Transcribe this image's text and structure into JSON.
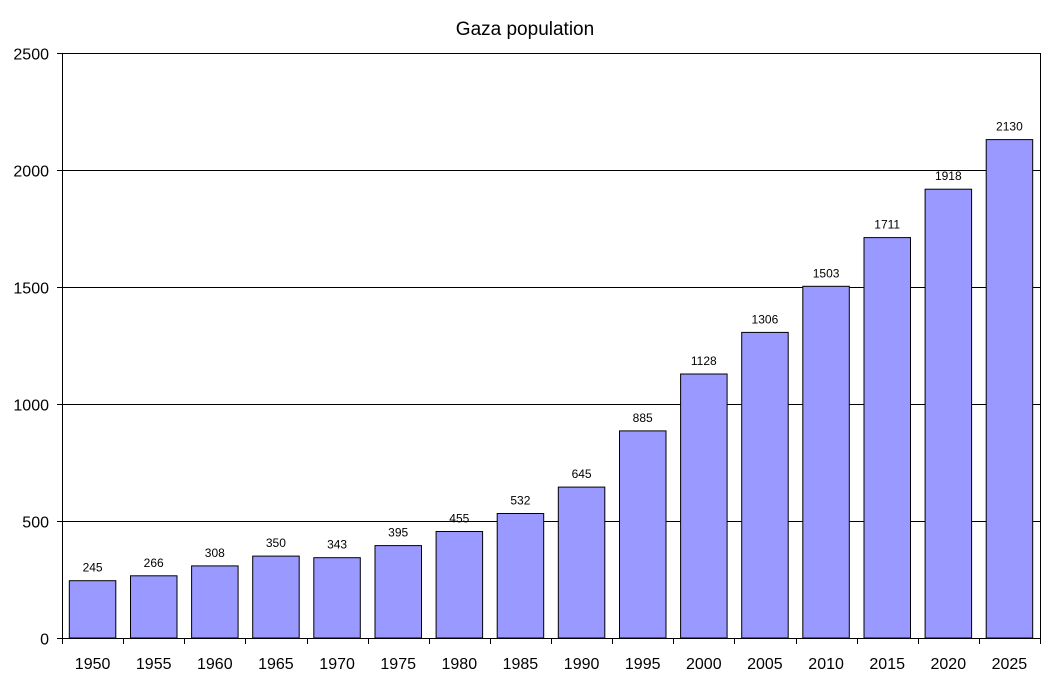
{
  "chart_data": {
    "type": "bar",
    "title": "Gaza population",
    "xlabel": "",
    "ylabel": "",
    "categories": [
      "1950",
      "1955",
      "1960",
      "1965",
      "1970",
      "1975",
      "1980",
      "1985",
      "1990",
      "1995",
      "2000",
      "2005",
      "2010",
      "2015",
      "2020",
      "2025"
    ],
    "values": [
      245,
      266,
      308,
      350,
      343,
      395,
      455,
      532,
      645,
      885,
      1128,
      1306,
      1503,
      1711,
      1918,
      2130
    ],
    "ylim": [
      0,
      2500
    ],
    "yticks": [
      "0",
      "500",
      "1000",
      "1500",
      "2000",
      "2500"
    ],
    "grid": true,
    "legend": "none",
    "bar_color": "#9999ff"
  }
}
